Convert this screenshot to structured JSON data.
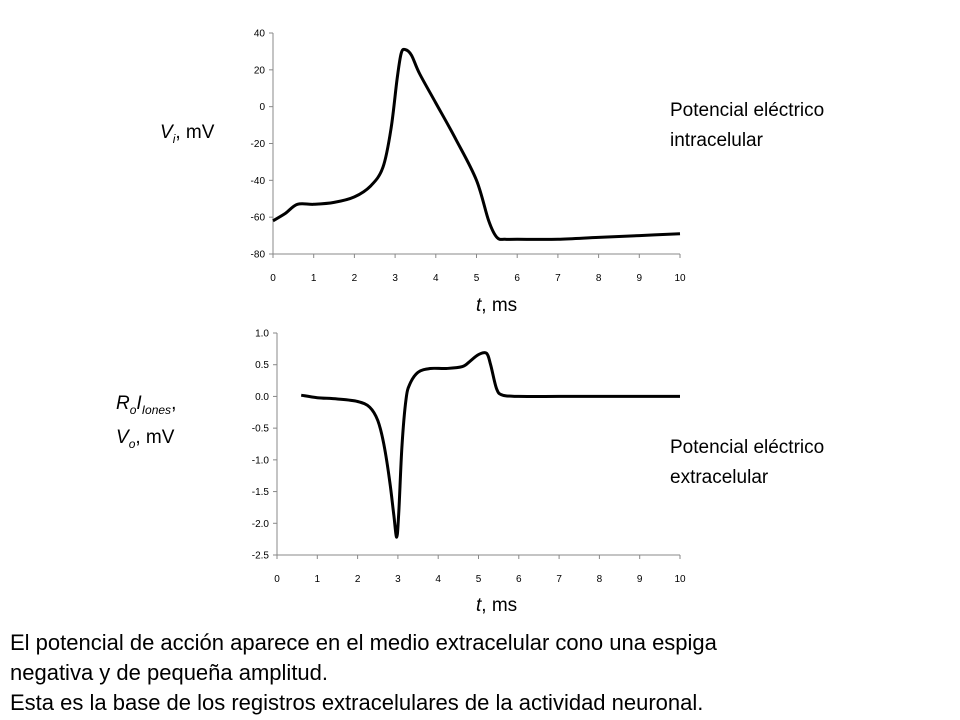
{
  "chart_data": [
    {
      "type": "line",
      "title": "",
      "xlabel": "t, ms",
      "ylabel": "Vi, mV",
      "annotation": [
        "Potencial eléctrico",
        "intracelular"
      ],
      "xlim": [
        0,
        10
      ],
      "ylim": [
        -80,
        40
      ],
      "x_ticks": [
        "0",
        "1",
        "2",
        "3",
        "4",
        "5",
        "6",
        "7",
        "8",
        "9",
        "10"
      ],
      "y_ticks": [
        "40",
        "20",
        "0",
        "-20",
        "-40",
        "-60",
        "-80"
      ],
      "grid": false,
      "series": [
        {
          "x": [
            0,
            0.3,
            0.6,
            1.0,
            1.5,
            2.0,
            2.4,
            2.7,
            2.9,
            3.05,
            3.15,
            3.25,
            3.4,
            3.6,
            4.0,
            4.5,
            5.0,
            5.3,
            5.5,
            5.7,
            6.0,
            7.0,
            8.0,
            9.0,
            10.0
          ],
          "y": [
            -62,
            -58,
            -53,
            -53,
            -52,
            -49,
            -43,
            -33,
            -12,
            15,
            29,
            31,
            28,
            18,
            2,
            -18,
            -40,
            -62,
            -71,
            -72,
            -72,
            -72,
            -71,
            -70,
            -69
          ]
        }
      ]
    },
    {
      "type": "line",
      "title": "",
      "xlabel": "t, ms",
      "ylabel": "RoIIones, Vo, mV",
      "annotation": [
        "Potencial eléctrico",
        "extracelular"
      ],
      "xlim": [
        0,
        10
      ],
      "ylim": [
        -2.5,
        1.0
      ],
      "x_ticks": [
        "0",
        "1",
        "2",
        "3",
        "4",
        "5",
        "6",
        "7",
        "8",
        "9",
        "10"
      ],
      "y_ticks": [
        "1.0",
        "0.5",
        "0.0",
        "-0.5",
        "-1.0",
        "-1.5",
        "-2.0",
        "-2.5"
      ],
      "grid": false,
      "series": [
        {
          "x": [
            0.6,
            1.0,
            1.5,
            2.0,
            2.3,
            2.5,
            2.65,
            2.8,
            2.9,
            2.97,
            3.02,
            3.1,
            3.2,
            3.3,
            3.5,
            3.8,
            4.2,
            4.6,
            4.8,
            5.0,
            5.2,
            5.3,
            5.45,
            5.6,
            6.0,
            7.0,
            8.0,
            10.0
          ],
          "y": [
            0.02,
            -0.02,
            -0.04,
            -0.08,
            -0.17,
            -0.38,
            -0.75,
            -1.35,
            -1.88,
            -2.22,
            -1.85,
            -0.8,
            -0.05,
            0.2,
            0.38,
            0.44,
            0.44,
            0.47,
            0.56,
            0.66,
            0.68,
            0.5,
            0.12,
            0.02,
            0.0,
            0.0,
            0.0,
            0.0
          ]
        }
      ]
    }
  ],
  "labels": {
    "top": {
      "ylabel_main": "V",
      "ylabel_sub": "i",
      "ylabel_rest": ", mV",
      "xlabel_var": "t",
      "xlabel_rest": ", ms",
      "annotation_line1": "Potencial eléctrico",
      "annotation_line2": "intracelular"
    },
    "bottom": {
      "ylabel_r": "R",
      "ylabel_r_sub": "o",
      "ylabel_i": "I",
      "ylabel_i_sub": "Iones",
      "ylabel_comma": ",",
      "ylabel_v": "V",
      "ylabel_v_sub": "o",
      "ylabel_rest": ", mV",
      "xlabel_var": "t",
      "xlabel_rest": ", ms",
      "annotation_line1": "Potencial eléctrico",
      "annotation_line2": "extracelular"
    }
  },
  "caption": {
    "line1": "El potencial de acción aparece en el medio extracelular cono una espiga",
    "line2": "negativa y de pequeña amplitud.",
    "line3": "Esta es la base de los registros extracelulares de la actividad neuronal."
  }
}
